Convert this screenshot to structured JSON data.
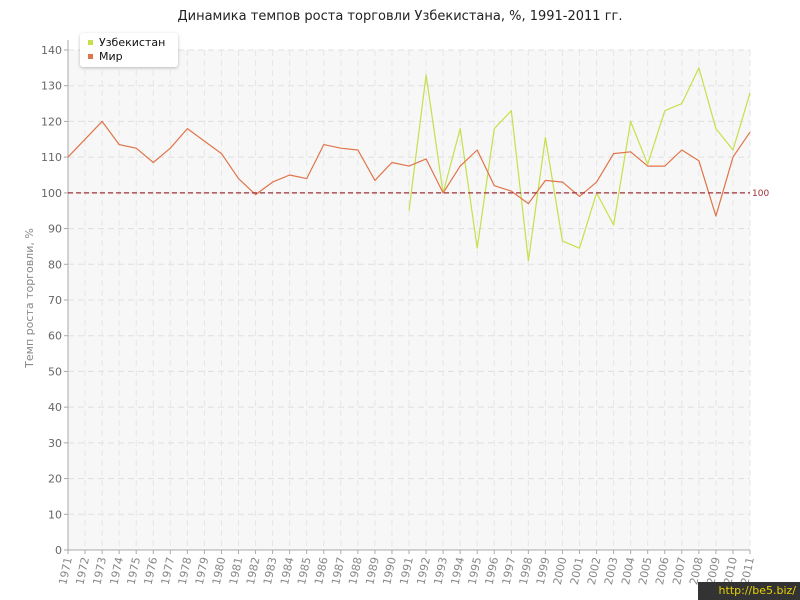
{
  "chart_data": {
    "type": "line",
    "title": "Динамика темпов роста торговли Узбекистана, %, 1991-2011 гг.",
    "xlabel": "",
    "ylabel": "Темп роста торговли, %",
    "ylim": [
      0,
      140
    ],
    "yticks": [
      "0",
      "10",
      "20",
      "30",
      "40",
      "50",
      "60",
      "70",
      "80",
      "90",
      "100",
      "110",
      "120",
      "130",
      "140"
    ],
    "categories": [
      "1971",
      "1972",
      "1973",
      "1974",
      "1975",
      "1976",
      "1977",
      "1978",
      "1979",
      "1980",
      "1981",
      "1982",
      "1983",
      "1984",
      "1985",
      "1986",
      "1987",
      "1988",
      "1989",
      "1990",
      "1991",
      "1992",
      "1993",
      "1994",
      "1995",
      "1996",
      "1997",
      "1998",
      "1999",
      "2000",
      "2001",
      "2002",
      "2003",
      "2004",
      "2005",
      "2006",
      "2007",
      "2008",
      "2009",
      "2010",
      "2011"
    ],
    "grid": true,
    "legend_position": "top-left",
    "reference_line": {
      "value": 100,
      "label": "100",
      "color": "#a0303a"
    },
    "series": [
      {
        "name": "Узбекистан",
        "color": "#c5e04a",
        "values": [
          null,
          null,
          null,
          null,
          null,
          null,
          null,
          null,
          null,
          null,
          null,
          null,
          null,
          null,
          null,
          null,
          null,
          null,
          null,
          null,
          95,
          133,
          100,
          118,
          84.5,
          118,
          123,
          81,
          115.5,
          86.5,
          84.5,
          100,
          91,
          120,
          108,
          123,
          125,
          135,
          118,
          112,
          128
        ]
      },
      {
        "name": "Мир",
        "color": "#e0744a",
        "values": [
          110,
          115,
          120,
          113.5,
          112.5,
          108.5,
          112.5,
          118,
          114.5,
          111,
          104,
          99.5,
          103,
          105,
          104,
          113.5,
          112.5,
          112,
          103.5,
          108.5,
          107.5,
          109.5,
          100,
          107.5,
          112,
          102,
          100.5,
          97,
          103.5,
          103,
          99,
          103,
          111,
          111.5,
          107.5,
          107.5,
          112,
          109,
          93.5,
          110,
          117
        ]
      }
    ]
  },
  "watermark": "http://be5.biz/"
}
